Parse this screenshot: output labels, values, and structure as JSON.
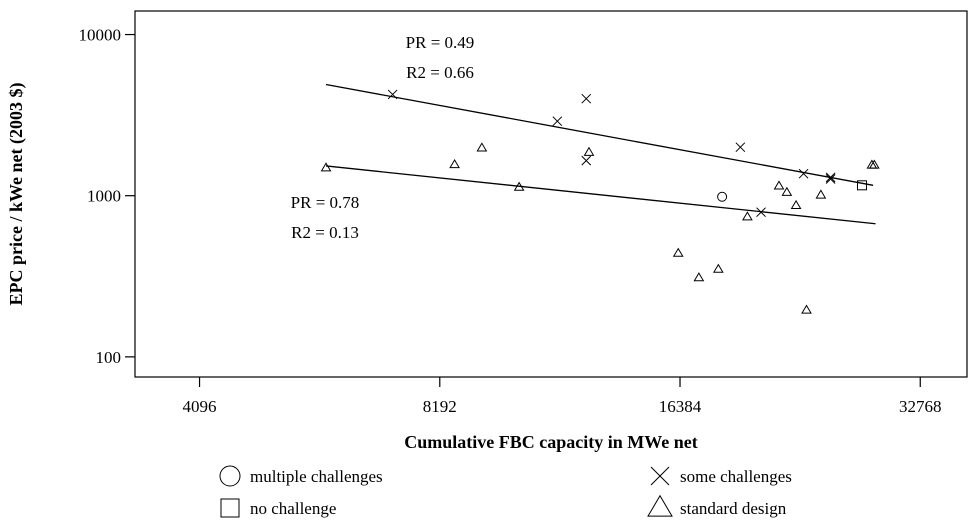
{
  "chart_data": {
    "type": "scatter",
    "title": "",
    "xlabel": "Cumulative FBC capacity in MWe net",
    "ylabel": "EPC price / kWe net (2003 $)",
    "x_scale": "log2",
    "y_scale": "log10",
    "xlim": [
      3400,
      37500
    ],
    "ylim": [
      75,
      14000
    ],
    "x_ticks": [
      4096,
      8192,
      16384,
      32768
    ],
    "x_tick_labels": [
      "4096",
      "8192",
      "16384",
      "32768"
    ],
    "y_ticks": [
      100,
      1000,
      10000
    ],
    "y_tick_labels": [
      "100",
      "1000",
      "10000"
    ],
    "grid": false,
    "legend_position": "bottom",
    "legend": [
      {
        "marker": "circle",
        "label": "multiple challenges"
      },
      {
        "marker": "x",
        "label": "some challenges"
      },
      {
        "marker": "square",
        "label": "no challenge"
      },
      {
        "marker": "triangle",
        "label": "standard design"
      }
    ],
    "series": [
      {
        "marker": "circle",
        "points": [
          [
            18500,
            985
          ]
        ]
      },
      {
        "marker": "square",
        "points": [
          [
            27700,
            1160
          ]
        ]
      },
      {
        "marker": "x",
        "points": [
          [
            7150,
            4250
          ],
          [
            11500,
            2900
          ],
          [
            12500,
            4000
          ],
          [
            12500,
            1650
          ],
          [
            19500,
            2000
          ],
          [
            20700,
            790
          ],
          [
            23400,
            1370
          ],
          [
            25300,
            1300
          ],
          [
            25300,
            1270
          ]
        ]
      },
      {
        "marker": "triangle",
        "points": [
          [
            5900,
            1490
          ],
          [
            8550,
            1560
          ],
          [
            9250,
            1980
          ],
          [
            10300,
            1130
          ],
          [
            12600,
            1860
          ],
          [
            16300,
            440
          ],
          [
            17300,
            310
          ],
          [
            18300,
            350
          ],
          [
            19900,
            740
          ],
          [
            21800,
            1150
          ],
          [
            22300,
            1050
          ],
          [
            22900,
            870
          ],
          [
            23600,
            195
          ],
          [
            24600,
            1010
          ],
          [
            28500,
            1550
          ],
          [
            28700,
            1550
          ]
        ]
      }
    ],
    "trend_lines": [
      {
        "x": [
          5900,
          28600
        ],
        "y": [
          4900,
          1160
        ]
      },
      {
        "x": [
          5900,
          28800
        ],
        "y": [
          1530,
          670
        ]
      }
    ],
    "annotations": [
      {
        "lines": [
          "PR = 0.49",
          "R2 = 0.66"
        ]
      },
      {
        "lines": [
          "PR = 0.78",
          "R2 = 0.13"
        ]
      }
    ]
  }
}
